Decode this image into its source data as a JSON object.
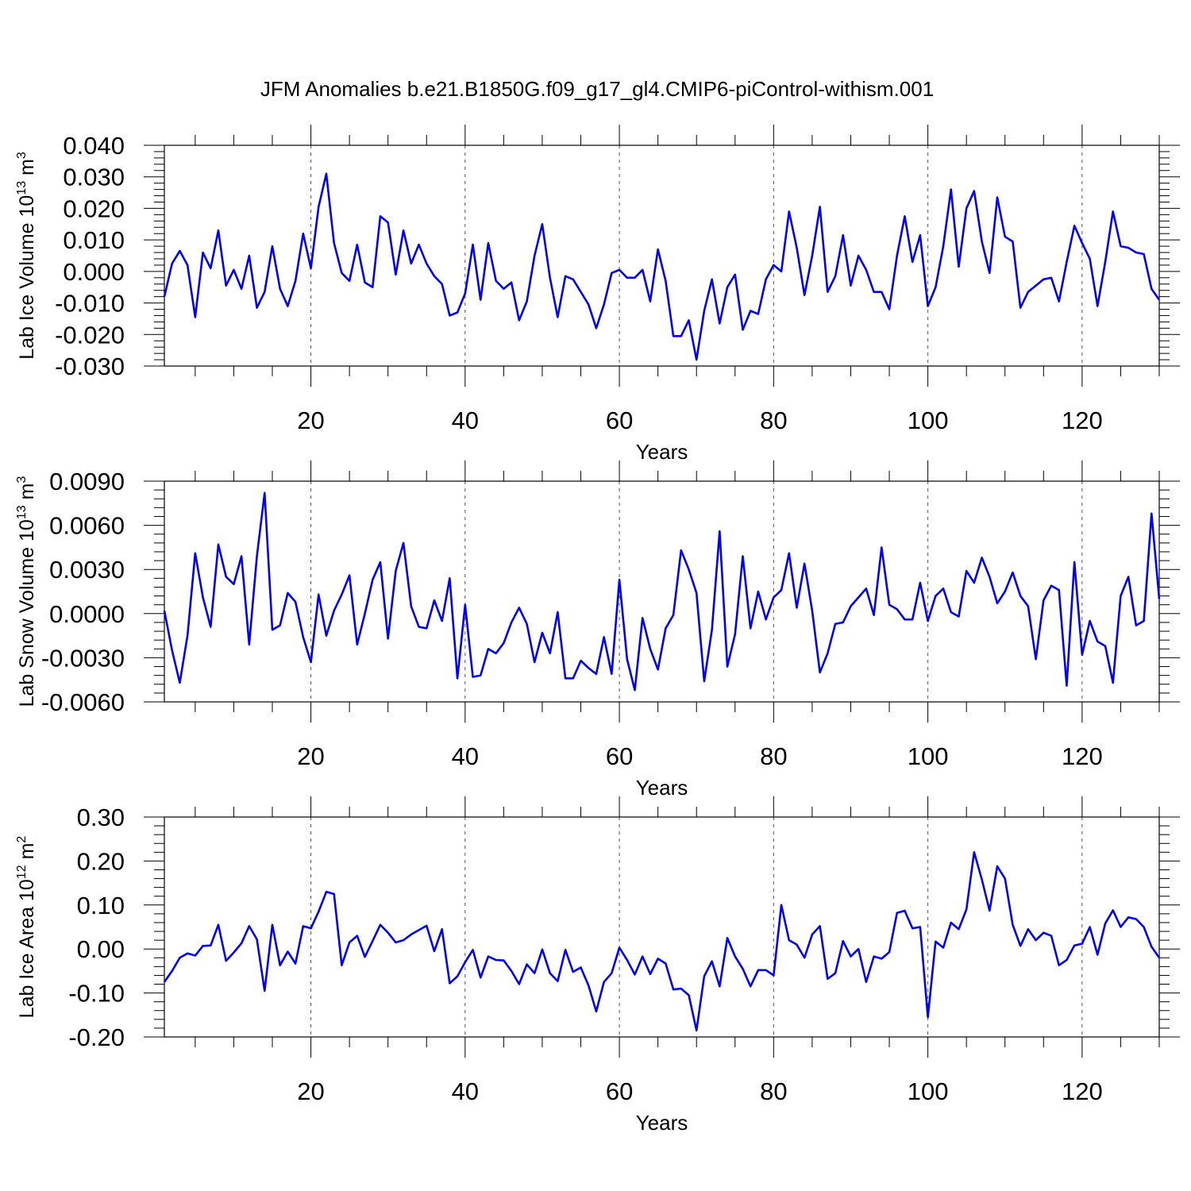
{
  "colors": {
    "series": "#0000ff",
    "axis": "#000000",
    "background": "#ffffff"
  },
  "chart_data": {
    "type": "line",
    "title": "JFM Anomalies b.e21.B1850G.f09_g17_gl4.CMIP6-piControl-withism.001",
    "panels": [
      {
        "type": "line",
        "xlabel": "Years",
        "ylabel_main": "Lab Ice Volume 10",
        "ylabel_exp": "13",
        "ylabel_unit": "m",
        "ylabel_unit_exp": "3",
        "xlim": [
          1,
          130
        ],
        "ylim": [
          -0.03,
          0.04
        ],
        "x_ticks": [
          20,
          40,
          60,
          80,
          100,
          120
        ],
        "x_tick_labels": [
          "20",
          "40",
          "60",
          "80",
          "100",
          "120"
        ],
        "y_ticks": [
          -0.03,
          -0.02,
          -0.01,
          0.0,
          0.01,
          0.02,
          0.03,
          0.04
        ],
        "y_tick_labels": [
          "-0.030",
          "-0.020",
          "-0.010",
          "0.000",
          "0.010",
          "0.020",
          "0.030",
          "0.040"
        ],
        "x_start": 1,
        "values": [
          -0.008,
          0.0025,
          0.0065,
          0.002,
          -0.0145,
          0.006,
          0.001,
          0.013,
          -0.0045,
          0.0005,
          -0.0055,
          0.005,
          -0.0115,
          -0.0065,
          0.008,
          -0.0055,
          -0.011,
          -0.003,
          0.012,
          0.001,
          0.0205,
          0.031,
          0.009,
          -0.0005,
          -0.003,
          0.0085,
          -0.0035,
          -0.005,
          0.0175,
          0.0155,
          -0.001,
          0.013,
          0.0025,
          0.0085,
          0.0025,
          -0.0015,
          -0.004,
          -0.014,
          -0.013,
          -0.007,
          0.0085,
          -0.009,
          0.009,
          -0.003,
          -0.0055,
          -0.0035,
          -0.0155,
          -0.0095,
          0.005,
          0.015,
          -0.002,
          -0.0145,
          -0.0015,
          -0.0025,
          -0.0065,
          -0.0105,
          -0.018,
          -0.0105,
          -0.0005,
          0.0005,
          -0.002,
          -0.002,
          0.0005,
          -0.0095,
          0.007,
          -0.003,
          -0.0205,
          -0.0205,
          -0.0155,
          -0.028,
          -0.0125,
          -0.0025,
          -0.0165,
          -0.005,
          -0.001,
          -0.0185,
          -0.0125,
          -0.0135,
          -0.0025,
          0.002,
          0.0,
          0.019,
          0.0075,
          -0.0075,
          0.005,
          0.0205,
          -0.0065,
          -0.0015,
          0.0115,
          -0.0045,
          0.005,
          0.0005,
          -0.0065,
          -0.0065,
          -0.012,
          0.005,
          0.0175,
          0.003,
          0.0115,
          -0.011,
          -0.005,
          0.008,
          0.026,
          0.0015,
          0.02,
          0.0255,
          0.0095,
          -0.0005,
          0.0235,
          0.011,
          0.0095,
          -0.0115,
          -0.0065,
          -0.0045,
          -0.0025,
          -0.002,
          -0.0095,
          0.003,
          0.0145,
          0.009,
          0.004,
          -0.011,
          0.003,
          0.019,
          0.008,
          0.0075,
          0.006,
          0.0055,
          -0.0055,
          -0.009
        ]
      },
      {
        "type": "line",
        "xlabel": "Years",
        "ylabel_main": "Lab Snow Volume 10",
        "ylabel_exp": "13",
        "ylabel_unit": "m",
        "ylabel_unit_exp": "3",
        "xlim": [
          1,
          130
        ],
        "ylim": [
          -0.006,
          0.009
        ],
        "x_ticks": [
          20,
          40,
          60,
          80,
          100,
          120
        ],
        "x_tick_labels": [
          "20",
          "40",
          "60",
          "80",
          "100",
          "120"
        ],
        "y_ticks": [
          -0.006,
          -0.003,
          0.0,
          0.003,
          0.006,
          0.009
        ],
        "y_tick_labels": [
          "-0.0060",
          "-0.0030",
          "0.0000",
          "0.0030",
          "0.0060",
          "0.0090"
        ],
        "x_start": 1,
        "values": [
          0.0002,
          -0.0025,
          -0.0047,
          -0.0015,
          0.0041,
          0.0011,
          -0.0009,
          0.0047,
          0.0025,
          0.002,
          0.0039,
          -0.0021,
          0.0039,
          0.0082,
          -0.0011,
          -0.0008,
          0.0014,
          0.0008,
          -0.0016,
          -0.0033,
          0.0013,
          -0.0015,
          0.0002,
          0.0013,
          0.0026,
          -0.0021,
          0.0,
          0.0023,
          0.0035,
          -0.0017,
          0.0029,
          0.0048,
          0.0005,
          -0.0009,
          -0.001,
          0.0009,
          -0.0005,
          0.0024,
          -0.0044,
          0.0006,
          -0.0043,
          -0.0042,
          -0.0024,
          -0.0027,
          -0.002,
          -0.0006,
          0.0004,
          -0.0007,
          -0.0033,
          -0.0013,
          -0.0027,
          0.0001,
          -0.0044,
          -0.0044,
          -0.0032,
          -0.0037,
          -0.0041,
          -0.0016,
          -0.0041,
          0.0023,
          -0.0031,
          -0.0052,
          -0.0003,
          -0.0024,
          -0.0038,
          -0.001,
          -0.0001,
          0.0043,
          0.003,
          0.0014,
          -0.0046,
          -0.0011,
          0.0056,
          -0.0036,
          -0.0014,
          0.0039,
          -0.001,
          0.0015,
          -0.0004,
          0.0011,
          0.0016,
          0.0041,
          0.0004,
          0.0034,
          0.0002,
          -0.004,
          -0.0027,
          -0.0007,
          -0.0006,
          0.0005,
          0.0011,
          0.0017,
          -0.0001,
          0.0045,
          0.0006,
          0.0003,
          -0.0004,
          -0.0004,
          0.0021,
          -0.0005,
          0.0012,
          0.0017,
          0.0001,
          -0.0002,
          0.0029,
          0.0021,
          0.0038,
          0.0025,
          0.0007,
          0.0015,
          0.0028,
          0.0012,
          0.0005,
          -0.0031,
          0.0009,
          0.0019,
          0.0016,
          -0.0049,
          0.0035,
          -0.0028,
          -0.0005,
          -0.0019,
          -0.0022,
          -0.0047,
          0.0012,
          0.0025,
          -0.0008,
          -0.0005,
          0.0068,
          0.001
        ]
      },
      {
        "type": "line",
        "xlabel": "Years",
        "ylabel_main": "Lab Ice Area 10",
        "ylabel_exp": "12",
        "ylabel_unit": "m",
        "ylabel_unit_exp": "2",
        "xlim": [
          1,
          130
        ],
        "ylim": [
          -0.2,
          0.3
        ],
        "x_ticks": [
          20,
          40,
          60,
          80,
          100,
          120
        ],
        "x_tick_labels": [
          "20",
          "40",
          "60",
          "80",
          "100",
          "120"
        ],
        "y_ticks": [
          -0.2,
          -0.1,
          0.0,
          0.1,
          0.2,
          0.3
        ],
        "y_tick_labels": [
          "-0.20",
          "-0.10",
          "0.00",
          "0.10",
          "0.20",
          "0.30"
        ],
        "x_start": 1,
        "values": [
          -0.075,
          -0.05,
          -0.02,
          -0.01,
          -0.015,
          0.007,
          0.008,
          0.055,
          -0.027,
          -0.008,
          0.013,
          0.052,
          0.022,
          -0.095,
          0.055,
          -0.037,
          -0.006,
          -0.033,
          0.052,
          0.047,
          0.085,
          0.13,
          0.125,
          -0.037,
          0.015,
          0.03,
          -0.018,
          0.018,
          0.055,
          0.037,
          0.015,
          0.02,
          0.033,
          0.043,
          0.053,
          -0.005,
          0.045,
          -0.078,
          -0.062,
          -0.03,
          -0.002,
          -0.065,
          -0.017,
          -0.025,
          -0.026,
          -0.05,
          -0.08,
          -0.035,
          -0.055,
          -0.001,
          -0.055,
          -0.073,
          -0.002,
          -0.052,
          -0.042,
          -0.083,
          -0.142,
          -0.075,
          -0.055,
          0.003,
          -0.025,
          -0.058,
          -0.017,
          -0.057,
          -0.022,
          -0.033,
          -0.092,
          -0.09,
          -0.105,
          -0.185,
          -0.062,
          -0.028,
          -0.085,
          0.025,
          -0.017,
          -0.045,
          -0.085,
          -0.048,
          -0.048,
          -0.06,
          0.1,
          0.02,
          0.01,
          -0.02,
          0.033,
          0.052,
          -0.068,
          -0.055,
          0.018,
          -0.017,
          0.0,
          -0.075,
          -0.017,
          -0.022,
          -0.007,
          0.082,
          0.087,
          0.047,
          0.05,
          -0.155,
          0.017,
          0.003,
          0.06,
          0.045,
          0.09,
          0.22,
          0.158,
          0.087,
          0.188,
          0.16,
          0.055,
          0.007,
          0.045,
          0.02,
          0.037,
          0.03,
          -0.037,
          -0.025,
          0.008,
          0.012,
          0.05,
          -0.013,
          0.058,
          0.088,
          0.05,
          0.072,
          0.068,
          0.05,
          0.005,
          -0.02
        ]
      }
    ]
  }
}
